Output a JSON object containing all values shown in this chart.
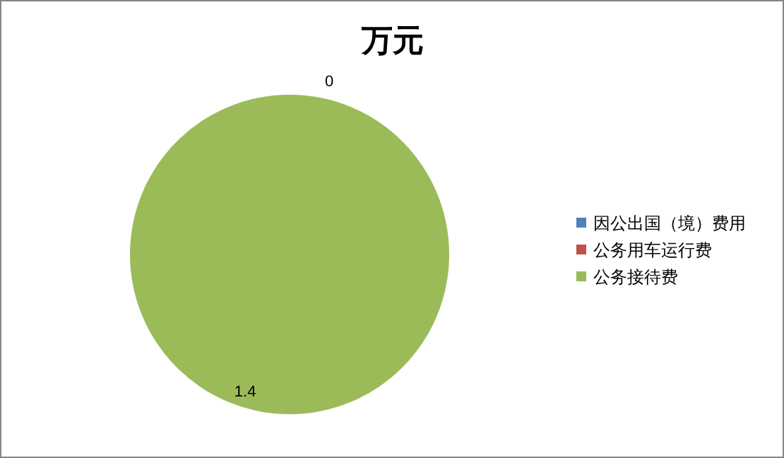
{
  "chart_data": {
    "type": "pie",
    "title": "万元",
    "categories": [
      "因公出国（境）费用",
      "公务用车运行费",
      "公务接待费"
    ],
    "values": [
      0,
      0,
      1.4
    ],
    "colors": [
      "#4f81bd",
      "#c0504d",
      "#9bbb59"
    ],
    "value_labels": [
      "0",
      null,
      "1.4"
    ],
    "legend": "right"
  }
}
